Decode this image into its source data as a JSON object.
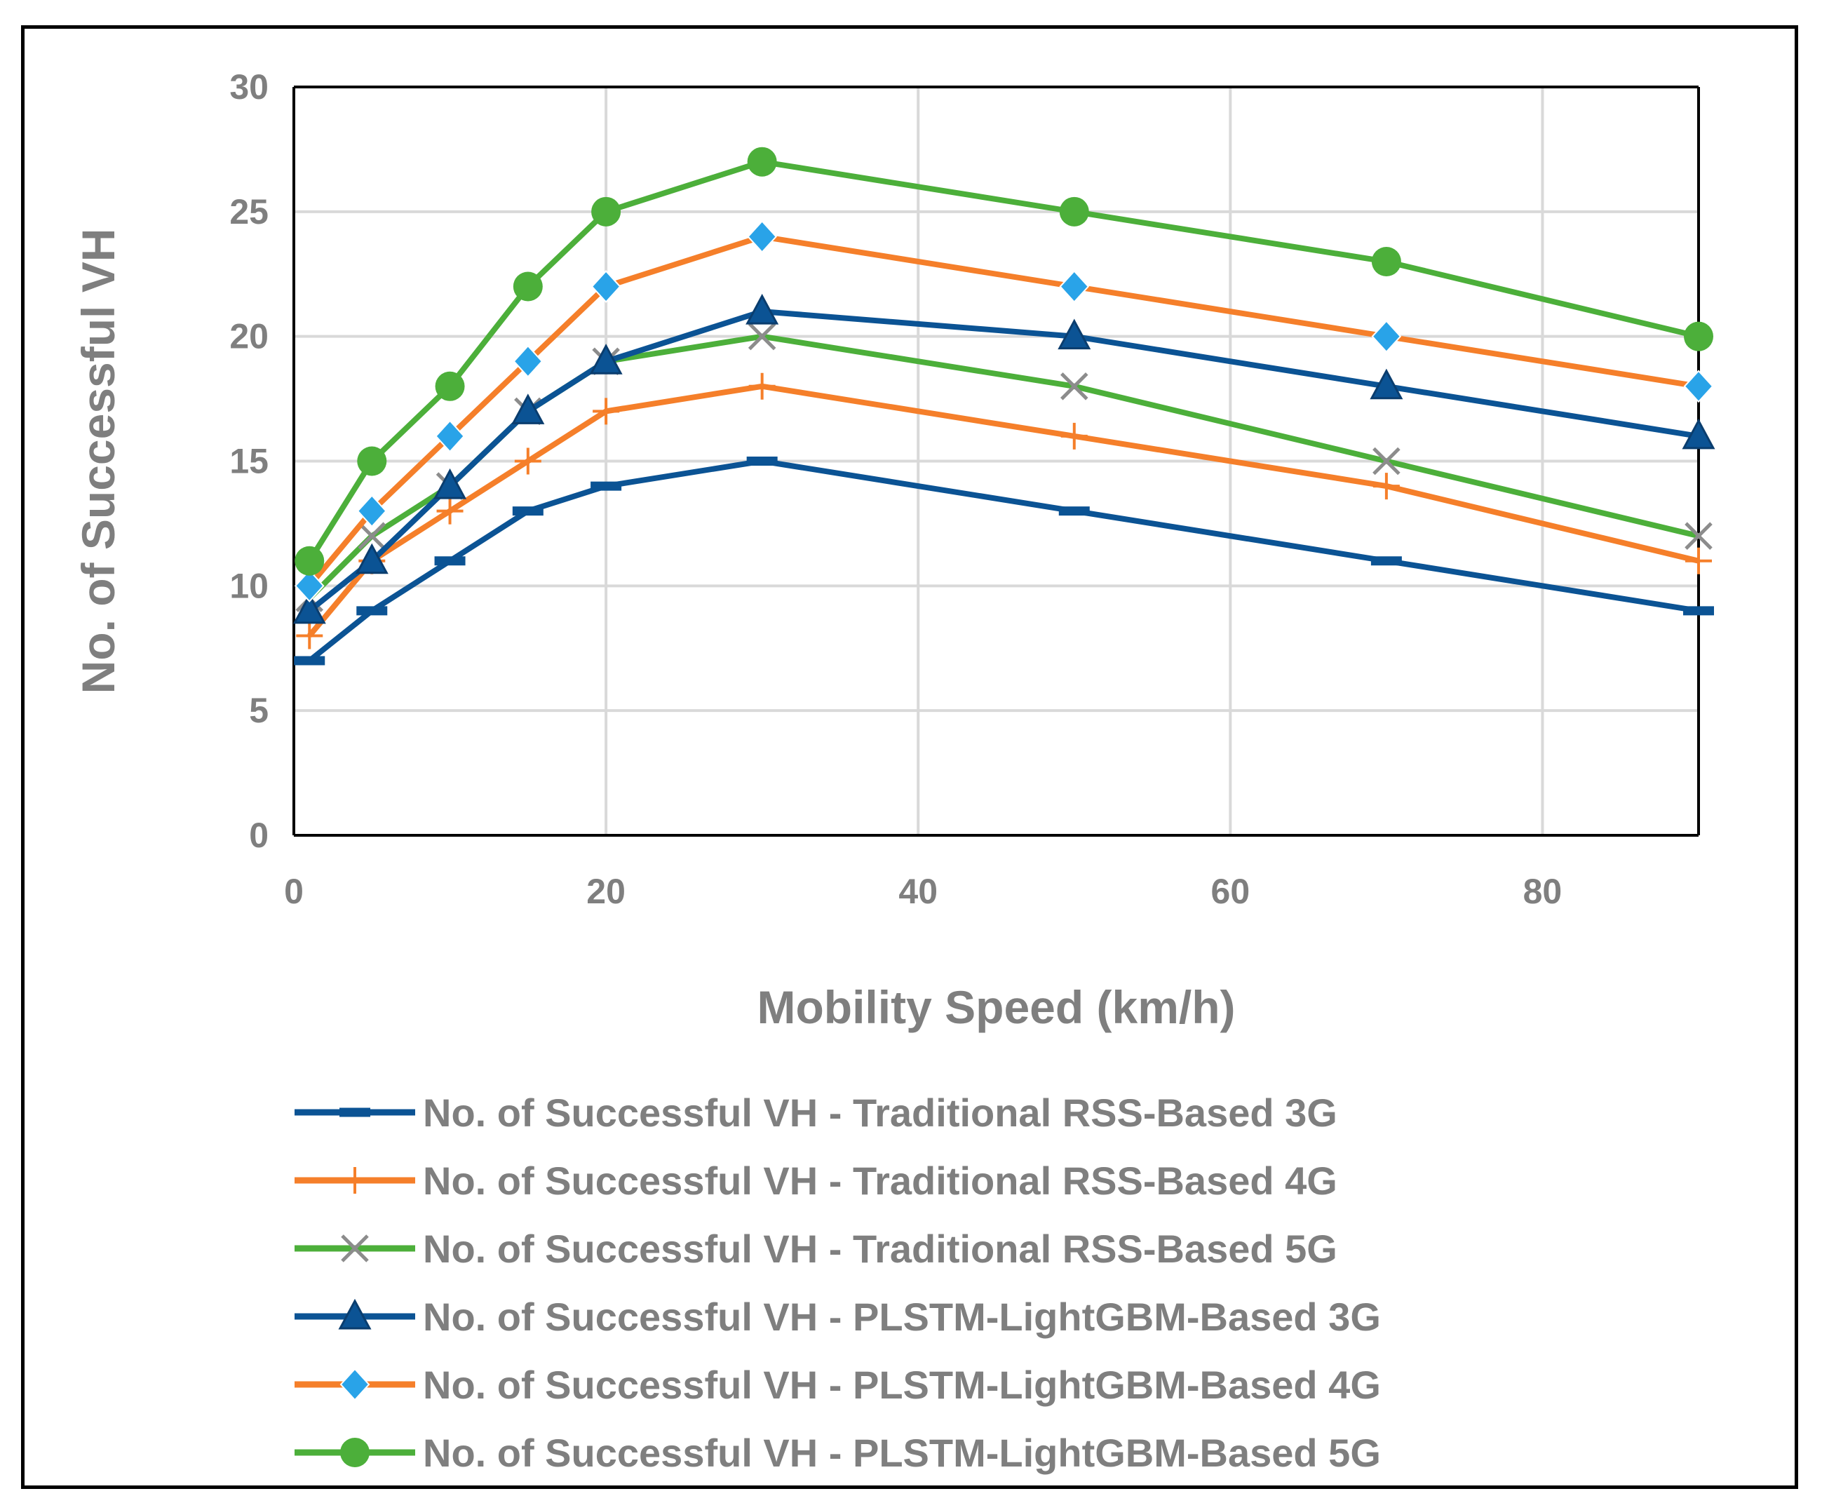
{
  "chart_data": {
    "type": "line",
    "title": "",
    "xlabel": "Mobility Speed (km/h)",
    "ylabel": "No. of Successful VH",
    "xlim": [
      0,
      90
    ],
    "ylim": [
      0,
      30
    ],
    "x_ticks": [
      0,
      20,
      40,
      60,
      80
    ],
    "y_ticks": [
      0,
      5,
      10,
      15,
      20,
      25,
      30
    ],
    "grid": true,
    "legend_position": "bottom",
    "x": [
      1,
      5,
      10,
      15,
      20,
      30,
      50,
      70,
      90
    ],
    "series": [
      {
        "name": "No. of Successful VH - Traditional RSS-Based 3G",
        "color": "#0b5394",
        "marker": "dash",
        "values": [
          7,
          9,
          11,
          13,
          14,
          15,
          13,
          11,
          9
        ]
      },
      {
        "name": "No. of Successful VH - Traditional RSS-Based 4G",
        "color": "#f57f2a",
        "marker": "plus",
        "values": [
          8,
          11,
          13,
          15,
          17,
          18,
          16,
          14,
          11
        ]
      },
      {
        "name": "No. of Successful VH - Traditional RSS-Based 5G",
        "color": "#4caf3a",
        "marker": "x",
        "marker_color": "#8c8c8c",
        "values": [
          9.5,
          12,
          14,
          17,
          19,
          20,
          18,
          15,
          12
        ]
      },
      {
        "name": "No. of Successful VH - PLSTM-LightGBM-Based 3G",
        "color": "#0b5394",
        "marker": "triangle",
        "values": [
          9,
          11,
          14,
          17,
          19,
          21,
          20,
          18,
          16
        ]
      },
      {
        "name": "No. of Successful VH - PLSTM-LightGBM-Based 4G",
        "color": "#f57f2a",
        "marker": "diamond",
        "marker_color": "#29a3e8",
        "values": [
          10,
          13,
          16,
          19,
          22,
          24,
          22,
          20,
          18
        ]
      },
      {
        "name": "No. of Successful VH - PLSTM-LightGBM-Based 5G",
        "color": "#4caf3a",
        "marker": "circle",
        "values": [
          11,
          15,
          18,
          22,
          25,
          27,
          25,
          23,
          20
        ]
      }
    ]
  }
}
